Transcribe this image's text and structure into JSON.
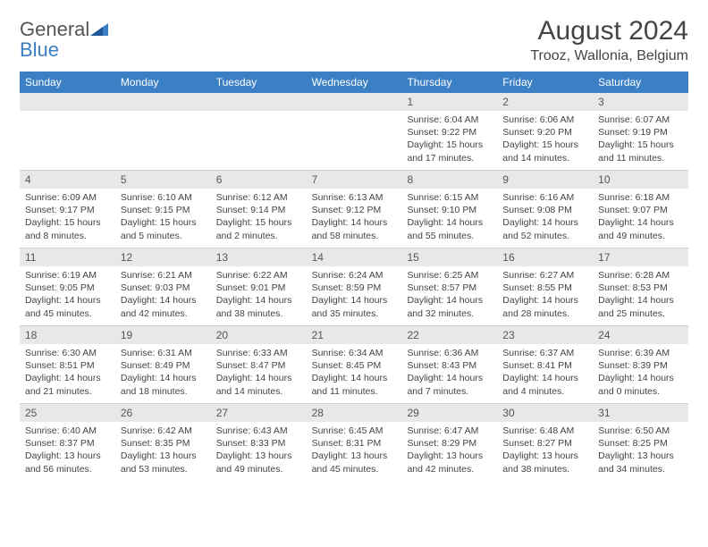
{
  "brand": {
    "left": "General",
    "right": "Blue"
  },
  "title": "August 2024",
  "location": "Trooz, Wallonia, Belgium",
  "colors": {
    "header_bg": "#3b7fc4",
    "header_text": "#ffffff",
    "daynum_bg": "#e8e8e8",
    "text": "#444444",
    "border": "#d0d0d0",
    "page_bg": "#ffffff"
  },
  "days_of_week": [
    "Sunday",
    "Monday",
    "Tuesday",
    "Wednesday",
    "Thursday",
    "Friday",
    "Saturday"
  ],
  "weeks": [
    [
      null,
      null,
      null,
      null,
      {
        "n": "1",
        "sr": "6:04 AM",
        "ss": "9:22 PM",
        "dl": "15 hours and 17 minutes."
      },
      {
        "n": "2",
        "sr": "6:06 AM",
        "ss": "9:20 PM",
        "dl": "15 hours and 14 minutes."
      },
      {
        "n": "3",
        "sr": "6:07 AM",
        "ss": "9:19 PM",
        "dl": "15 hours and 11 minutes."
      }
    ],
    [
      {
        "n": "4",
        "sr": "6:09 AM",
        "ss": "9:17 PM",
        "dl": "15 hours and 8 minutes."
      },
      {
        "n": "5",
        "sr": "6:10 AM",
        "ss": "9:15 PM",
        "dl": "15 hours and 5 minutes."
      },
      {
        "n": "6",
        "sr": "6:12 AM",
        "ss": "9:14 PM",
        "dl": "15 hours and 2 minutes."
      },
      {
        "n": "7",
        "sr": "6:13 AM",
        "ss": "9:12 PM",
        "dl": "14 hours and 58 minutes."
      },
      {
        "n": "8",
        "sr": "6:15 AM",
        "ss": "9:10 PM",
        "dl": "14 hours and 55 minutes."
      },
      {
        "n": "9",
        "sr": "6:16 AM",
        "ss": "9:08 PM",
        "dl": "14 hours and 52 minutes."
      },
      {
        "n": "10",
        "sr": "6:18 AM",
        "ss": "9:07 PM",
        "dl": "14 hours and 49 minutes."
      }
    ],
    [
      {
        "n": "11",
        "sr": "6:19 AM",
        "ss": "9:05 PM",
        "dl": "14 hours and 45 minutes."
      },
      {
        "n": "12",
        "sr": "6:21 AM",
        "ss": "9:03 PM",
        "dl": "14 hours and 42 minutes."
      },
      {
        "n": "13",
        "sr": "6:22 AM",
        "ss": "9:01 PM",
        "dl": "14 hours and 38 minutes."
      },
      {
        "n": "14",
        "sr": "6:24 AM",
        "ss": "8:59 PM",
        "dl": "14 hours and 35 minutes."
      },
      {
        "n": "15",
        "sr": "6:25 AM",
        "ss": "8:57 PM",
        "dl": "14 hours and 32 minutes."
      },
      {
        "n": "16",
        "sr": "6:27 AM",
        "ss": "8:55 PM",
        "dl": "14 hours and 28 minutes."
      },
      {
        "n": "17",
        "sr": "6:28 AM",
        "ss": "8:53 PM",
        "dl": "14 hours and 25 minutes."
      }
    ],
    [
      {
        "n": "18",
        "sr": "6:30 AM",
        "ss": "8:51 PM",
        "dl": "14 hours and 21 minutes."
      },
      {
        "n": "19",
        "sr": "6:31 AM",
        "ss": "8:49 PM",
        "dl": "14 hours and 18 minutes."
      },
      {
        "n": "20",
        "sr": "6:33 AM",
        "ss": "8:47 PM",
        "dl": "14 hours and 14 minutes."
      },
      {
        "n": "21",
        "sr": "6:34 AM",
        "ss": "8:45 PM",
        "dl": "14 hours and 11 minutes."
      },
      {
        "n": "22",
        "sr": "6:36 AM",
        "ss": "8:43 PM",
        "dl": "14 hours and 7 minutes."
      },
      {
        "n": "23",
        "sr": "6:37 AM",
        "ss": "8:41 PM",
        "dl": "14 hours and 4 minutes."
      },
      {
        "n": "24",
        "sr": "6:39 AM",
        "ss": "8:39 PM",
        "dl": "14 hours and 0 minutes."
      }
    ],
    [
      {
        "n": "25",
        "sr": "6:40 AM",
        "ss": "8:37 PM",
        "dl": "13 hours and 56 minutes."
      },
      {
        "n": "26",
        "sr": "6:42 AM",
        "ss": "8:35 PM",
        "dl": "13 hours and 53 minutes."
      },
      {
        "n": "27",
        "sr": "6:43 AM",
        "ss": "8:33 PM",
        "dl": "13 hours and 49 minutes."
      },
      {
        "n": "28",
        "sr": "6:45 AM",
        "ss": "8:31 PM",
        "dl": "13 hours and 45 minutes."
      },
      {
        "n": "29",
        "sr": "6:47 AM",
        "ss": "8:29 PM",
        "dl": "13 hours and 42 minutes."
      },
      {
        "n": "30",
        "sr": "6:48 AM",
        "ss": "8:27 PM",
        "dl": "13 hours and 38 minutes."
      },
      {
        "n": "31",
        "sr": "6:50 AM",
        "ss": "8:25 PM",
        "dl": "13 hours and 34 minutes."
      }
    ]
  ],
  "labels": {
    "sunrise": "Sunrise:",
    "sunset": "Sunset:",
    "daylight": "Daylight:"
  }
}
